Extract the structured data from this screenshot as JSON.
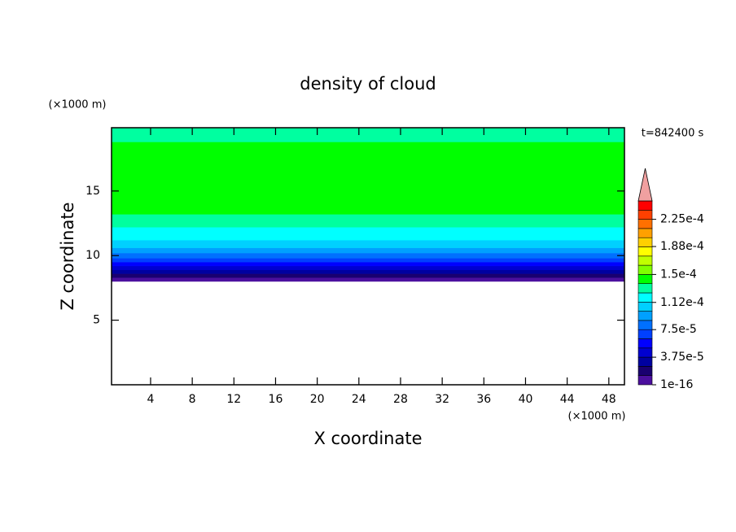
{
  "chart_data": {
    "type": "contour",
    "title": "density of cloud",
    "x_label": "X coordinate",
    "y_label": "Z coordinate",
    "x_unit": "(×1000 m)",
    "y_unit": "(×1000 m)",
    "annotation": "t=842400 s",
    "xlim": [
      0.25,
      49.5
    ],
    "ylim": [
      0,
      19.9
    ],
    "xticks": [
      4,
      8,
      12,
      16,
      20,
      24,
      28,
      32,
      36,
      40,
      44,
      48
    ],
    "yticks": [
      5,
      10,
      15
    ],
    "z_edges": [
      8.0,
      8.3,
      8.6,
      8.9,
      9.2,
      9.5,
      9.8,
      10.2,
      10.6,
      11.2,
      12.2,
      13.2,
      18.8,
      19.9
    ],
    "density": [
      6e-06,
      1.8e-05,
      3e-05,
      4.5e-05,
      5.7e-05,
      7e-05,
      8e-05,
      9e-05,
      0.000105,
      0.00012,
      0.00013,
      0.00014,
      0.00013
    ],
    "colorbar": {
      "clim": [
        0,
        0.00025
      ],
      "levels": [
        0,
        1.25e-05,
        2.5e-05,
        3.75e-05,
        5e-05,
        6.25e-05,
        7.5e-05,
        8.75e-05,
        0.0001,
        0.0001125,
        0.000125,
        0.0001375,
        0.00015,
        0.0001625,
        0.000175,
        0.0001875,
        0.0002,
        0.0002125,
        0.000225,
        0.0002375,
        0.00025
      ],
      "colors": [
        "#4b0f9e",
        "#1a0070",
        "#0000a0",
        "#0000d0",
        "#0000ff",
        "#0040ff",
        "#0070ff",
        "#00a0ff",
        "#00d0ff",
        "#00ffff",
        "#00ffa0",
        "#00ff00",
        "#80ff00",
        "#c0ff00",
        "#ffff00",
        "#ffd000",
        "#ffa000",
        "#ff7000",
        "#ff4000",
        "#ff0000"
      ],
      "extend_color": "#f0a0a0",
      "ticks": [
        {
          "value": 1e-16,
          "label": "1e-16"
        },
        {
          "value": 3.75e-05,
          "label": "3.75e-5"
        },
        {
          "value": 7.5e-05,
          "label": "7.5e-5"
        },
        {
          "value": 0.000112,
          "label": "1.12e-4"
        },
        {
          "value": 0.00015,
          "label": "1.5e-4"
        },
        {
          "value": 0.000188,
          "label": "1.88e-4"
        },
        {
          "value": 0.000225,
          "label": "2.25e-4"
        }
      ]
    }
  }
}
